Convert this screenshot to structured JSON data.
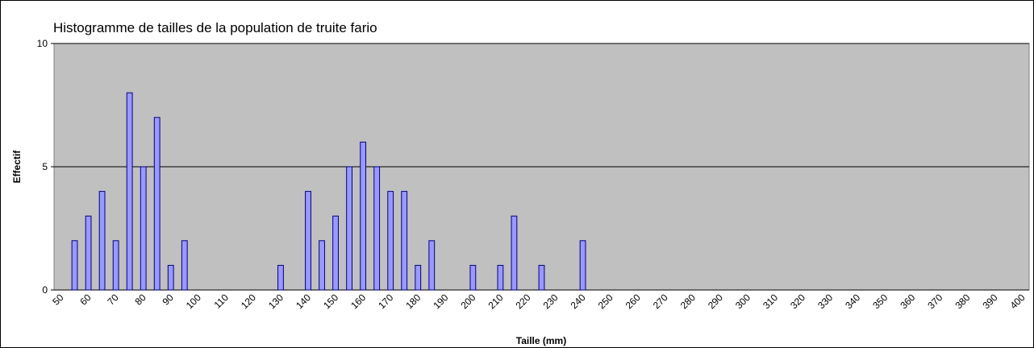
{
  "chart_data": {
    "type": "bar",
    "title": "Histogramme de tailles de la population de truite fario",
    "x_label": "Taille (mm)",
    "y_label": "Effectif",
    "categories": [
      50,
      null,
      60,
      null,
      70,
      null,
      80,
      null,
      90,
      null,
      100,
      null,
      110,
      null,
      120,
      null,
      130,
      null,
      140,
      null,
      150,
      null,
      160,
      null,
      170,
      null,
      180,
      null,
      190,
      null,
      200,
      null,
      210,
      null,
      220,
      null,
      230,
      null,
      240,
      null,
      250,
      null,
      260,
      null,
      270,
      null,
      280,
      null,
      290,
      null,
      300,
      null,
      310,
      null,
      320,
      null,
      330,
      null,
      340,
      null,
      350,
      null,
      360,
      null,
      370,
      null,
      380,
      null,
      390,
      null,
      400
    ],
    "values": [
      0,
      2,
      3,
      4,
      2,
      8,
      5,
      7,
      1,
      2,
      0,
      0,
      0,
      0,
      0,
      0,
      1,
      0,
      4,
      2,
      3,
      5,
      6,
      5,
      4,
      4,
      1,
      2,
      0,
      0,
      1,
      0,
      1,
      3,
      0,
      1,
      0,
      0,
      2,
      0,
      0,
      0,
      0,
      0,
      0,
      0,
      0,
      0,
      0,
      0,
      0,
      0,
      0,
      0,
      0,
      0,
      0,
      0,
      0,
      0,
      0,
      0,
      0,
      0,
      0,
      0,
      0,
      0,
      0,
      0,
      0
    ],
    "color": "#9999ff",
    "edge_color": "#000080",
    "plot_background": "#c0c0c0",
    "ylim": [
      0,
      10
    ],
    "yticks": [
      0,
      5,
      10
    ],
    "grid": true
  }
}
